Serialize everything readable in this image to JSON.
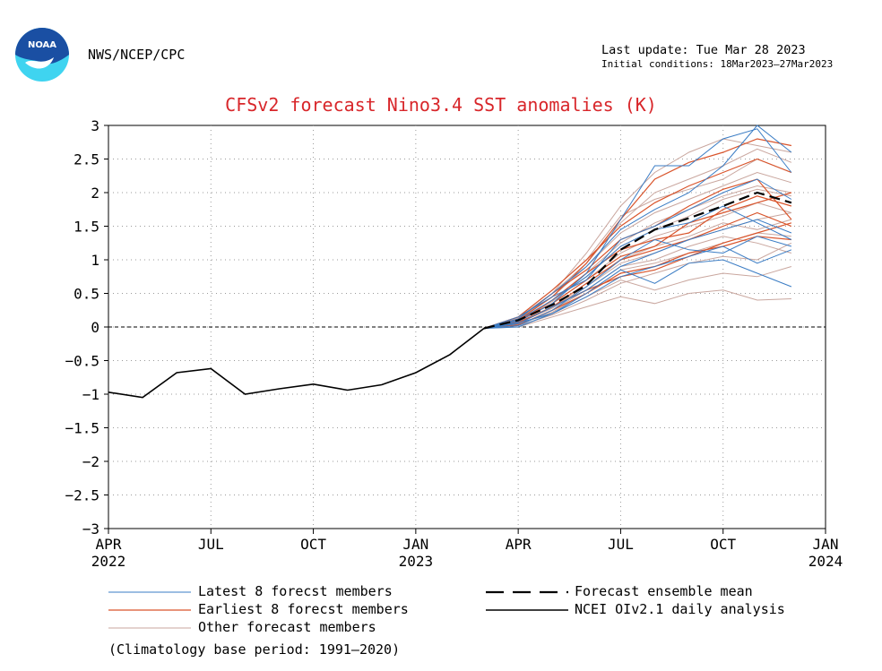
{
  "header": {
    "agency": "NWS/NCEP/CPC",
    "last_update": "Last update: Tue Mar 28 2023",
    "initial_conditions": "Initial conditions: 18Mar2023–27Mar2023"
  },
  "footnote": "(Climatology base period: 1991–2020)",
  "colors": {
    "latest": "#3a7cc4",
    "earliest": "#d9542b",
    "other": "#c9a69e",
    "mean": "#000000",
    "analysis": "#000000",
    "title": "#d8262a",
    "logo_blue": "#1a4fa3",
    "logo_cyan": "#3fd4f0"
  },
  "chart_data": {
    "type": "line",
    "title": "CFSv2 forecast Nino3.4 SST anomalies (K)",
    "ylim": [
      -3,
      3
    ],
    "yticks": [
      "3",
      "2.5",
      "2",
      "1.5",
      "1",
      "0.5",
      "0",
      "−0.5",
      "−1",
      "−1.5",
      "−2",
      "−2.5",
      "−3"
    ],
    "ytick_values": [
      3,
      2.5,
      2,
      1.5,
      1,
      0.5,
      0,
      -0.5,
      -1,
      -1.5,
      -2,
      -2.5,
      -3
    ],
    "xlim": [
      "2022-04",
      "2024-01"
    ],
    "xticks": [
      {
        "month": "APR",
        "year": "2022"
      },
      {
        "month": "JUL",
        "year": ""
      },
      {
        "month": "OCT",
        "year": ""
      },
      {
        "month": "JAN",
        "year": "2023"
      },
      {
        "month": "APR",
        "year": ""
      },
      {
        "month": "JUL",
        "year": ""
      },
      {
        "month": "OCT",
        "year": ""
      },
      {
        "month": "JAN",
        "year": "2024"
      }
    ],
    "grid": true,
    "zero_line": true,
    "analysis": {
      "name": "NCEI OIv2.1 daily analysis",
      "x": [
        "2022-04",
        "2022-05",
        "2022-06",
        "2022-07",
        "2022-08",
        "2022-09",
        "2022-10",
        "2022-11",
        "2022-12",
        "2023-01",
        "2023-02",
        "2023-03"
      ],
      "y": [
        -0.97,
        -1.05,
        -0.68,
        -0.62,
        -1.0,
        -0.92,
        -0.85,
        -0.94,
        -0.86,
        -0.68,
        -0.41,
        -0.02
      ]
    },
    "ensemble_mean": {
      "name": "Forecast ensemble mean",
      "x": [
        "2023-03",
        "2023-04",
        "2023-05",
        "2023-06",
        "2023-07",
        "2023-08",
        "2023-09",
        "2023-10",
        "2023-11",
        "2023-12"
      ],
      "y": [
        -0.02,
        0.1,
        0.33,
        0.62,
        1.15,
        1.45,
        1.62,
        1.8,
        2.0,
        1.85
      ]
    },
    "member_x": [
      "2023-03",
      "2023-04",
      "2023-05",
      "2023-06",
      "2023-07",
      "2023-08",
      "2023-09",
      "2023-10",
      "2023-11",
      "2023-12"
    ],
    "latest_members": {
      "name": "Latest 8 forecst members",
      "values": [
        [
          -0.02,
          0.08,
          0.35,
          0.8,
          1.6,
          2.4,
          2.4,
          2.8,
          2.95,
          2.3
        ],
        [
          -0.02,
          0.0,
          0.2,
          0.5,
          0.85,
          0.65,
          0.95,
          1.0,
          0.8,
          0.6
        ],
        [
          -0.02,
          0.15,
          0.45,
          0.7,
          1.3,
          1.5,
          1.75,
          2.0,
          2.2,
          1.9
        ],
        [
          -0.02,
          0.05,
          0.3,
          0.55,
          0.9,
          1.1,
          1.3,
          1.45,
          1.6,
          1.4
        ],
        [
          -0.02,
          0.1,
          0.4,
          0.75,
          1.2,
          1.45,
          1.55,
          1.8,
          1.55,
          1.3
        ],
        [
          -0.02,
          0.02,
          0.25,
          0.6,
          1.0,
          1.3,
          1.15,
          1.1,
          1.35,
          1.2
        ],
        [
          -0.02,
          0.12,
          0.5,
          0.9,
          1.45,
          1.75,
          2.0,
          2.4,
          3.0,
          2.6
        ],
        [
          -0.02,
          0.06,
          0.2,
          0.45,
          0.75,
          0.9,
          1.05,
          1.2,
          0.95,
          1.15
        ]
      ]
    },
    "earliest_members": {
      "name": "Earliest 8 forecst members",
      "values": [
        [
          -0.02,
          0.1,
          0.45,
          0.95,
          1.6,
          2.2,
          2.45,
          2.6,
          2.8,
          2.7
        ],
        [
          -0.02,
          0.05,
          0.3,
          0.55,
          0.75,
          0.85,
          1.05,
          1.25,
          1.4,
          1.55
        ],
        [
          -0.02,
          0.12,
          0.5,
          0.85,
          1.3,
          1.5,
          1.8,
          2.05,
          2.2,
          1.6
        ],
        [
          -0.02,
          0.08,
          0.4,
          0.8,
          1.15,
          1.3,
          1.4,
          1.75,
          1.95,
          1.8
        ],
        [
          -0.02,
          0.15,
          0.55,
          1.0,
          1.5,
          1.85,
          2.1,
          2.3,
          2.5,
          2.3
        ],
        [
          -0.02,
          0.03,
          0.25,
          0.5,
          0.8,
          0.9,
          1.1,
          1.2,
          1.35,
          1.3
        ],
        [
          -0.02,
          0.1,
          0.35,
          0.7,
          1.05,
          1.2,
          1.55,
          1.7,
          1.85,
          2.0
        ],
        [
          -0.02,
          0.07,
          0.3,
          0.65,
          1.0,
          1.15,
          1.3,
          1.5,
          1.7,
          1.5
        ]
      ]
    },
    "other_members": {
      "name": "Other forecast members",
      "values": [
        [
          -0.02,
          0.1,
          0.5,
          1.1,
          1.8,
          2.3,
          2.6,
          2.8,
          2.7,
          2.6
        ],
        [
          -0.02,
          0.0,
          0.15,
          0.3,
          0.45,
          0.35,
          0.5,
          0.55,
          0.4,
          0.42
        ],
        [
          -0.02,
          0.05,
          0.3,
          0.6,
          0.95,
          1.1,
          1.3,
          1.45,
          1.6,
          1.7
        ],
        [
          -0.02,
          0.15,
          0.55,
          1.0,
          1.65,
          1.9,
          2.05,
          2.2,
          2.5,
          2.3
        ],
        [
          -0.02,
          0.05,
          0.2,
          0.45,
          0.7,
          0.55,
          0.7,
          0.8,
          0.75,
          0.9
        ],
        [
          -0.02,
          0.08,
          0.4,
          0.8,
          1.25,
          1.55,
          1.75,
          1.95,
          2.1,
          2.0
        ],
        [
          -0.02,
          0.12,
          0.45,
          0.9,
          1.4,
          1.7,
          1.9,
          2.1,
          2.3,
          2.15
        ],
        [
          -0.02,
          0.03,
          0.25,
          0.55,
          0.9,
          1.0,
          1.2,
          1.35,
          1.25,
          1.1
        ],
        [
          -0.02,
          0.1,
          0.35,
          0.7,
          1.1,
          1.35,
          1.5,
          1.65,
          1.85,
          1.7
        ],
        [
          -0.02,
          0.06,
          0.28,
          0.6,
          1.0,
          1.2,
          1.35,
          1.55,
          1.45,
          1.6
        ],
        [
          -0.02,
          0.14,
          0.5,
          0.95,
          1.55,
          2.0,
          2.2,
          2.4,
          2.65,
          2.45
        ],
        [
          -0.02,
          0.02,
          0.18,
          0.4,
          0.65,
          0.8,
          0.95,
          1.05,
          1.0,
          1.25
        ],
        [
          -0.02,
          0.09,
          0.38,
          0.75,
          1.2,
          1.45,
          1.65,
          1.9,
          2.05,
          1.95
        ],
        [
          -0.02,
          0.04,
          0.22,
          0.5,
          0.85,
          0.95,
          1.1,
          1.25,
          1.4,
          1.35
        ]
      ]
    }
  }
}
